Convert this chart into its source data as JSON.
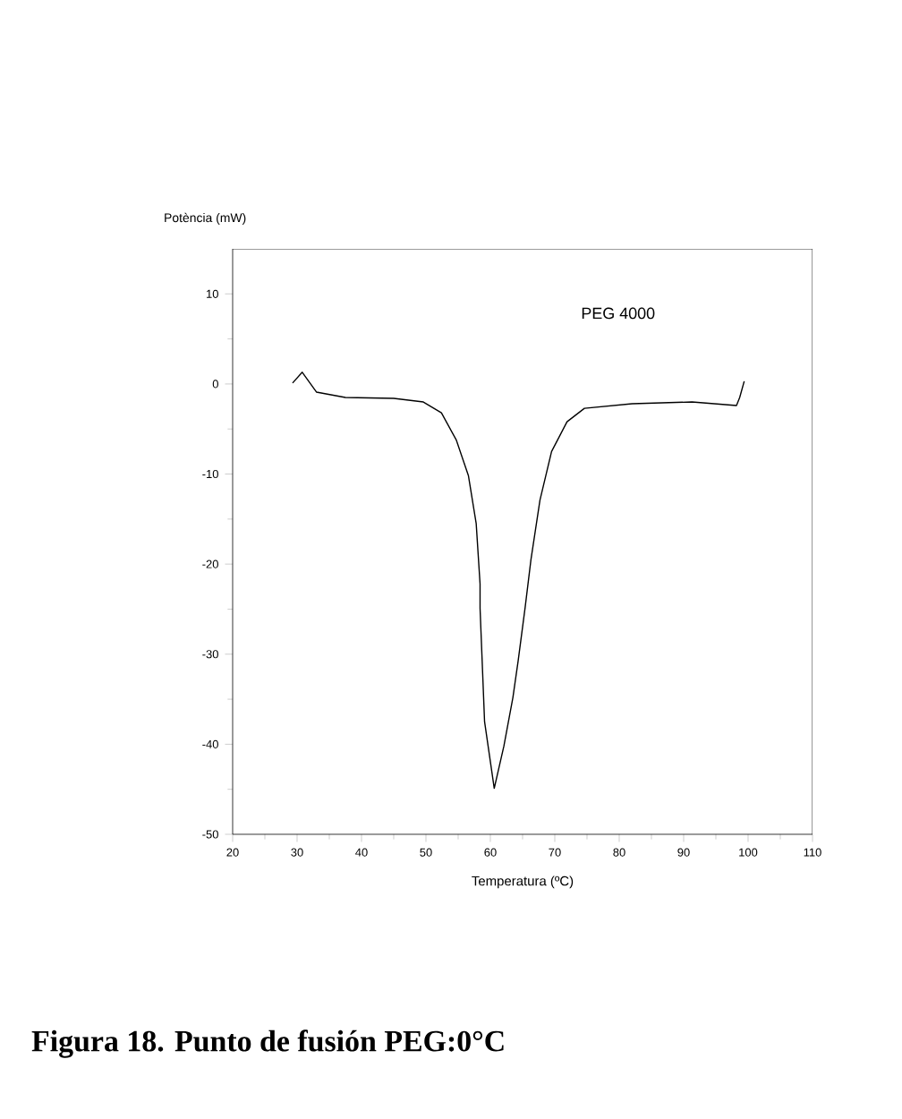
{
  "chart_data": {
    "type": "line",
    "title": "Figura 18. Punto de fusión PEG:0°C",
    "xlabel": "Temperatura (ºC)",
    "ylabel": "Potència (mW)",
    "xlim": [
      20,
      110
    ],
    "ylim": [
      -50,
      15
    ],
    "xticks": [
      20,
      30,
      40,
      50,
      60,
      70,
      80,
      90,
      100,
      110
    ],
    "yticks": [
      -50,
      -40,
      -30,
      -20,
      -10,
      0,
      10
    ],
    "grid": false,
    "legend": false,
    "marker": "none",
    "line_style": "solid",
    "series": [
      {
        "name": "PEG 4000",
        "color": "#000000",
        "x": [
          29.3,
          30.8,
          33,
          37.5,
          45,
          49.6,
          52.4,
          54.7,
          56.6,
          57.8,
          58.4,
          58.4,
          59.1,
          60.6,
          62.1,
          63.5,
          64.3,
          65.4,
          66.3,
          67.7,
          69.5,
          71.9,
          74.6,
          82,
          91.3,
          98.2,
          98.7,
          99.4
        ],
        "values": [
          0.1,
          1.3,
          -0.9,
          -1.5,
          -1.6,
          -2.0,
          -3.2,
          -6.2,
          -10.2,
          -15.5,
          -22.2,
          -24.9,
          -37.5,
          -44.9,
          -40.2,
          -34.8,
          -30.8,
          -24.8,
          -19.5,
          -12.9,
          -7.5,
          -4.2,
          -2.7,
          -2.2,
          -2.0,
          -2.4,
          -1.5,
          0.3
        ]
      }
    ]
  }
}
